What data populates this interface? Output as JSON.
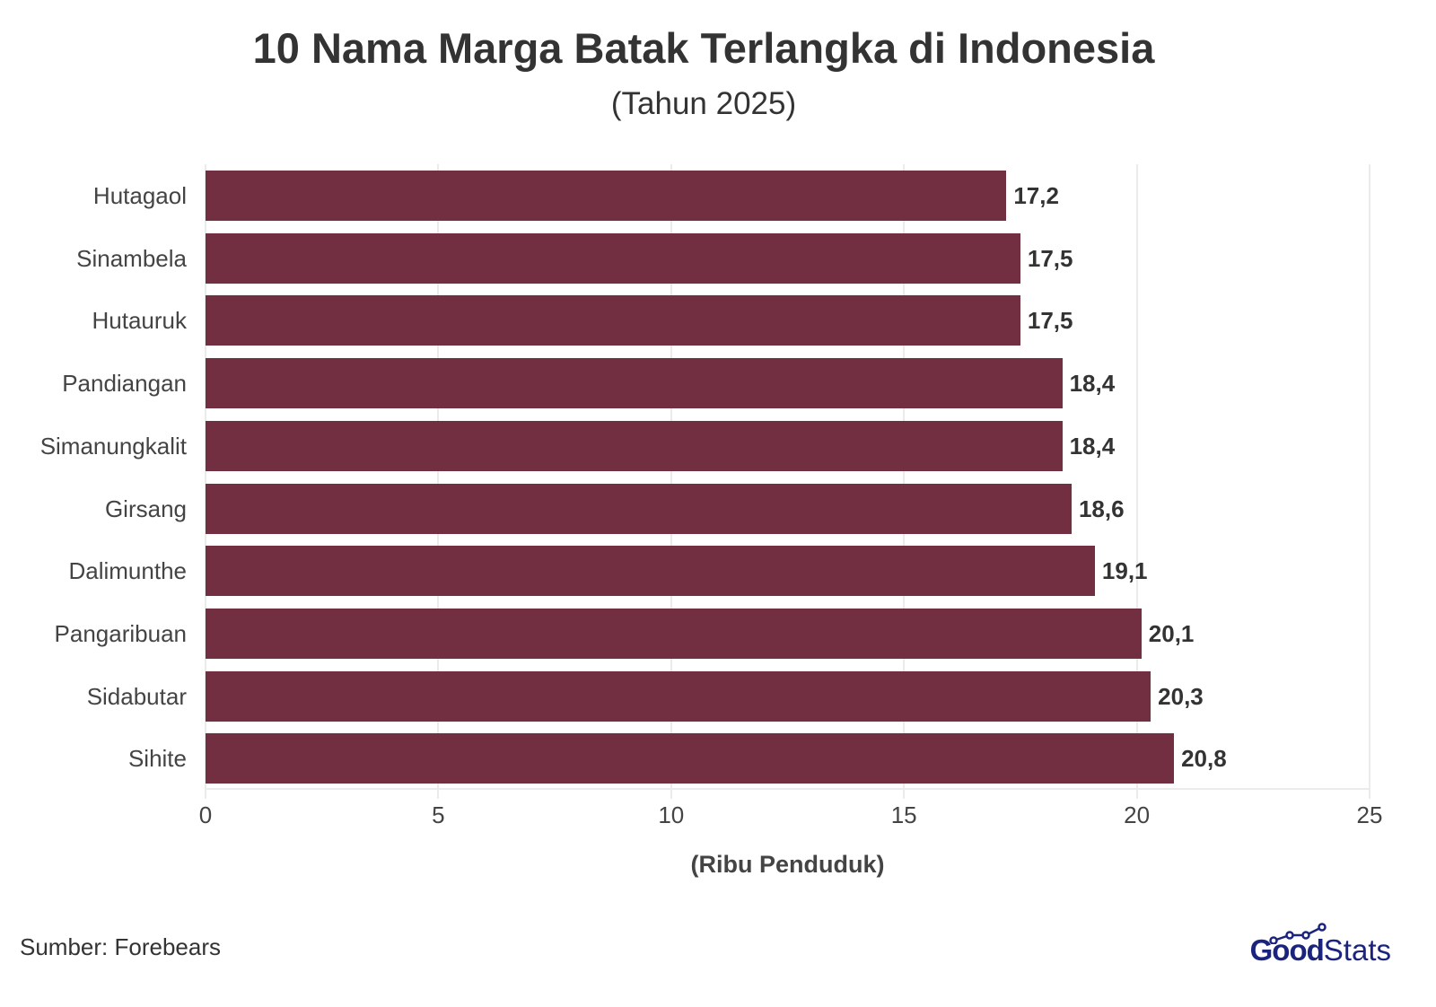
{
  "header": {
    "title": "10 Nama Marga Batak Terlangka di Indonesia",
    "subtitle": "(Tahun 2025)"
  },
  "footer": {
    "source": "Sumber: Forebears",
    "logo_good": "Good",
    "logo_stats": "Stats"
  },
  "colors": {
    "bar": "#722f42",
    "logo": "#1a237e"
  },
  "chart_data": {
    "type": "bar",
    "orientation": "horizontal",
    "title": "10 Nama Marga Batak Terlangka di Indonesia",
    "subtitle": "(Tahun 2025)",
    "xlabel": "(Ribu Penduduk)",
    "ylabel": "",
    "xlim": [
      0,
      25
    ],
    "xticks": [
      "0",
      "5",
      "10",
      "15",
      "20",
      "25"
    ],
    "grid": true,
    "legend": null,
    "categories": [
      "Hutagaol",
      "Sinambela",
      "Hutauruk",
      "Pandiangan",
      "Simanungkalit",
      "Girsang",
      "Dalimunthe",
      "Pangaribuan",
      "Sidabutar",
      "Sihite"
    ],
    "values": [
      17.2,
      17.5,
      17.5,
      18.4,
      18.4,
      18.6,
      19.1,
      20.1,
      20.3,
      20.8
    ],
    "value_labels": [
      "17,2",
      "17,5",
      "17,5",
      "18,4",
      "18,4",
      "18,6",
      "19,1",
      "20,1",
      "20,3",
      "20,8"
    ]
  }
}
